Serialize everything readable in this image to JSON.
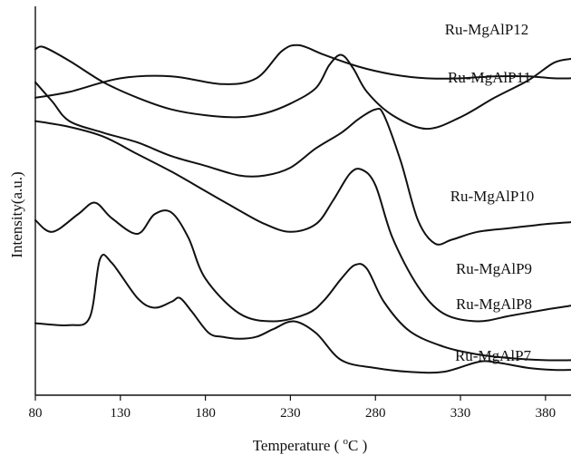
{
  "chart_data": {
    "type": "line",
    "xlabel": "Temperature ( ",
    "xlabel_degree": "o",
    "xlabel_unit": "C )",
    "ylabel": "Intensity(a.u.)",
    "xlim": [
      80,
      395
    ],
    "ylim": [
      0,
      100
    ],
    "y_ticks_shown": false,
    "x_ticks": [
      80,
      130,
      180,
      230,
      280,
      330,
      380
    ],
    "x_tick_labels": [
      "80",
      "130",
      "180",
      "230",
      "280",
      "330",
      "380"
    ],
    "grid": false,
    "series": [
      {
        "name": "Ru-MgAlP12",
        "x": [
          80,
          100,
          130,
          160,
          190,
          210,
          225,
          235,
          250,
          270,
          290,
          310,
          330,
          350,
          370,
          385,
          395
        ],
        "y": [
          76.5,
          78,
          81.5,
          82,
          80,
          81.5,
          88.5,
          90,
          87.5,
          84.5,
          82.5,
          81.5,
          81.5,
          82,
          82,
          81.5,
          81.5
        ]
      },
      {
        "name": "Ru-MgAlP11",
        "x": [
          80,
          85,
          100,
          120,
          140,
          160,
          180,
          200,
          215,
          230,
          245,
          253,
          260,
          267,
          275,
          290,
          310,
          330,
          350,
          370,
          385,
          395
        ],
        "y": [
          89,
          89.5,
          86,
          80.5,
          76.5,
          73.5,
          72,
          71.5,
          72.5,
          75,
          79,
          85,
          87.5,
          84,
          78,
          72,
          68.5,
          71.5,
          76.5,
          81,
          85.5,
          86.5
        ]
      },
      {
        "name": "Ru-MgAlP10",
        "x": [
          80,
          90,
          100,
          120,
          140,
          160,
          180,
          200,
          215,
          230,
          245,
          260,
          270,
          280,
          285,
          295,
          305,
          315,
          325,
          340,
          360,
          380,
          395
        ],
        "y": [
          80.5,
          75.5,
          70.5,
          67.5,
          65,
          61.5,
          59,
          56.5,
          56.5,
          58.5,
          63.5,
          67.5,
          71,
          73.5,
          72,
          60,
          45,
          39,
          40,
          42,
          43,
          44,
          44.5
        ]
      },
      {
        "name": "Ru-MgAlP9",
        "x": [
          80,
          100,
          120,
          140,
          160,
          180,
          200,
          215,
          230,
          245,
          255,
          265,
          272,
          280,
          290,
          305,
          320,
          340,
          360,
          380,
          395
        ],
        "y": [
          70.5,
          69,
          66.5,
          62,
          57.5,
          52.5,
          47.5,
          44,
          42,
          44,
          50,
          57,
          58,
          54,
          40.5,
          28,
          21,
          19,
          20.5,
          22,
          23
        ]
      },
      {
        "name": "Ru-MgAlP8",
        "x": [
          80,
          90,
          105,
          115,
          125,
          140,
          150,
          160,
          170,
          180,
          200,
          220,
          240,
          250,
          260,
          268,
          275,
          285,
          300,
          320,
          340,
          360,
          380,
          395
        ],
        "y": [
          45,
          42,
          46.5,
          49.5,
          45.5,
          41.5,
          46.5,
          47,
          40.5,
          30,
          21,
          19,
          21,
          24.5,
          30,
          33.5,
          32.5,
          24,
          16.5,
          12.5,
          10.5,
          9.5,
          9,
          9
        ]
      },
      {
        "name": "Ru-MgAlP7",
        "x": [
          80,
          100,
          112,
          118,
          125,
          140,
          150,
          160,
          165,
          172,
          182,
          190,
          200,
          210,
          220,
          232,
          245,
          260,
          280,
          300,
          320,
          340,
          350,
          370,
          385,
          395
        ],
        "y": [
          18.5,
          18,
          20,
          35,
          34,
          25,
          22.5,
          24,
          25,
          21.5,
          16,
          15,
          14.5,
          15,
          17,
          19,
          16,
          9,
          7,
          6,
          6,
          8.5,
          8.5,
          7,
          6.5,
          6.5
        ]
      }
    ]
  }
}
